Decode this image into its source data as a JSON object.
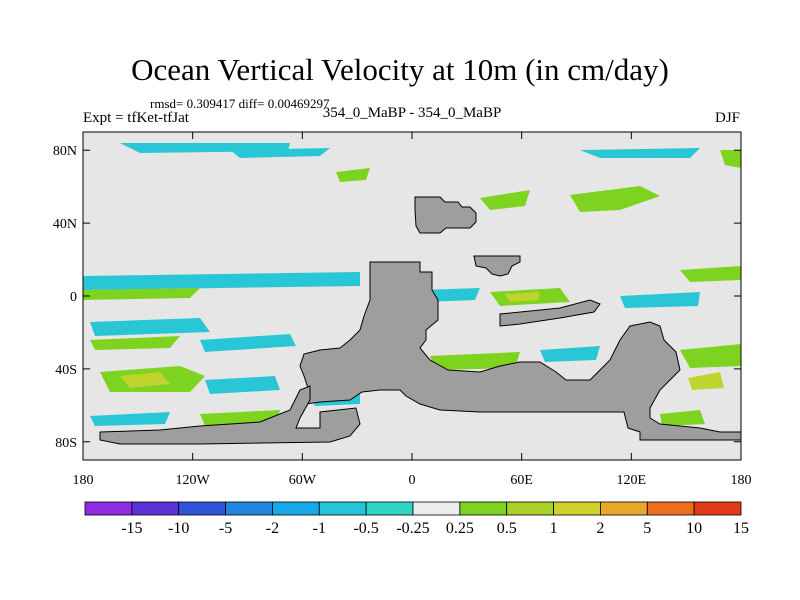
{
  "map": {
    "title": "Ocean Vertical Velocity at 10m (in cm/day)",
    "stats_text": "rmsd= 0.309417  diff= 0.00469297",
    "left_label": "Expt = tfKet-tfJat",
    "center_label": "354_0_MaBP - 354_0_MaBP",
    "right_label": "DJF",
    "lat_ticks": [
      "80N",
      "40N",
      "0",
      "40S",
      "80S"
    ],
    "lon_ticks": [
      "180",
      "120W",
      "60W",
      "0",
      "60E",
      "120E",
      "180"
    ],
    "colors": {
      "land": "#9e9e9e",
      "background": "#e6e6e6",
      "pos_small": "#7ed321",
      "pos_mid": "#c0d42e",
      "neg_small": "#29c6d6",
      "neg_mid": "#2aa8e0"
    }
  },
  "colorbar": {
    "labels": [
      "-15",
      "-10",
      "-5",
      "-2",
      "-1",
      "-0.5",
      "-0.25",
      "0.25",
      "0.5",
      "1",
      "2",
      "5",
      "10",
      "15"
    ],
    "colors": [
      "#8f2be2",
      "#5a30d8",
      "#2f54d9",
      "#1f85e0",
      "#17a8e8",
      "#23c4dc",
      "#2ed6c6",
      "#ececec",
      "#7ed321",
      "#a9d12a",
      "#d2d129",
      "#e8a82b",
      "#ec6f1c",
      "#e23a1a"
    ]
  }
}
